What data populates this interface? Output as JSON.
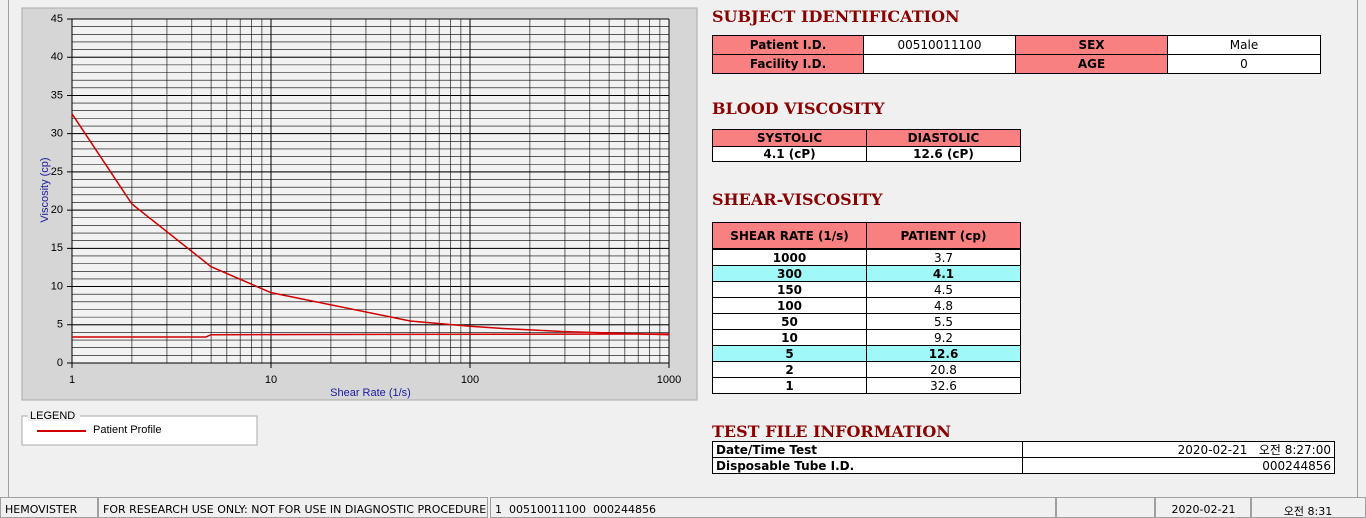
{
  "chart": {
    "type": "line",
    "y_label": "Viscosity (cp)",
    "x_label": "Shear Rate (1/s)",
    "log_x": true,
    "xlim": [
      1,
      1000
    ],
    "ylim": [
      0,
      45
    ],
    "xticks": [
      1,
      10,
      100,
      1000
    ],
    "yticks": [
      0,
      5,
      10,
      15,
      20,
      25,
      30,
      35,
      40,
      45
    ],
    "grid": true,
    "legend_title": "LEGEND",
    "series": [
      {
        "name": "Patient Profile",
        "color": "#d00000",
        "x": [
          1,
          2,
          5,
          10,
          50,
          100,
          150,
          300,
          1000
        ],
        "values": [
          32.6,
          20.8,
          12.6,
          9.2,
          5.5,
          4.8,
          4.5,
          4.1,
          3.7
        ]
      },
      {
        "color": "#d00000",
        "x": [
          1,
          4.7,
          5,
          1000
        ],
        "values": [
          3.4,
          3.4,
          3.7,
          3.8
        ]
      }
    ]
  },
  "subject": {
    "title": "SUBJECT IDENTIFICATION",
    "rows": [
      [
        "Patient I.D.",
        "00510011100",
        "SEX",
        "Male"
      ],
      [
        "Facility I.D.",
        null,
        "AGE",
        "0"
      ]
    ]
  },
  "blood": {
    "title": "BLOOD VISCOSITY",
    "headers": [
      "SYSTOLIC",
      "DIASTOLIC"
    ],
    "values": [
      "4.1 (cP)",
      "12.6 (cP)"
    ]
  },
  "shear": {
    "title": "SHEAR-VISCOSITY",
    "headers": [
      "SHEAR RATE (1/s)",
      "PATIENT (cp)"
    ],
    "rows": [
      [
        "1000",
        "3.7"
      ],
      [
        "300",
        "4.1"
      ],
      [
        "150",
        "4.5"
      ],
      [
        "100",
        "4.8"
      ],
      [
        "50",
        "5.5"
      ],
      [
        "10",
        "9.2"
      ],
      [
        "5",
        "12.6"
      ],
      [
        "2",
        "20.8"
      ],
      [
        "1",
        "32.6"
      ]
    ],
    "highlight_rows": [
      1,
      6
    ]
  },
  "test": {
    "title": "TEST FILE INFORMATION",
    "rows": [
      [
        "Date/Time Test",
        "2020-02-21   오전 8:27:00"
      ],
      [
        "Disposable Tube I.D.",
        "000244856"
      ]
    ]
  },
  "status": [
    "HEMOVISTER",
    "FOR RESEARCH USE ONLY: NOT FOR USE IN DIAGNOSTIC PROCEDURES",
    "1  00510011100  000244856",
    "2020-02-21",
    "오전 8:31"
  ]
}
